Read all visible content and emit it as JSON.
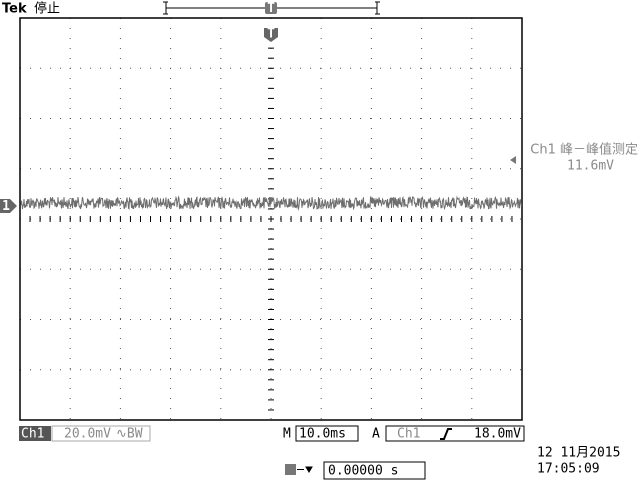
{
  "header": {
    "brand": "Tek",
    "status": "停止",
    "trigger_marker": "T"
  },
  "channel_marker": "1",
  "measurement": {
    "label": "Ch1 峰－峰值测定",
    "value": "11.6mV"
  },
  "footer": {
    "channel": "Ch1",
    "scale": "20.0mV",
    "bandwidth": "∿BW",
    "timebase_prefix": "M",
    "timebase": "10.0ms",
    "trigger_mode": "A",
    "trigger_source": "Ch1",
    "trigger_level": "18.0mV",
    "date": "12 11月2015",
    "time": "17:05:09",
    "position": "0.00000 s"
  }
}
